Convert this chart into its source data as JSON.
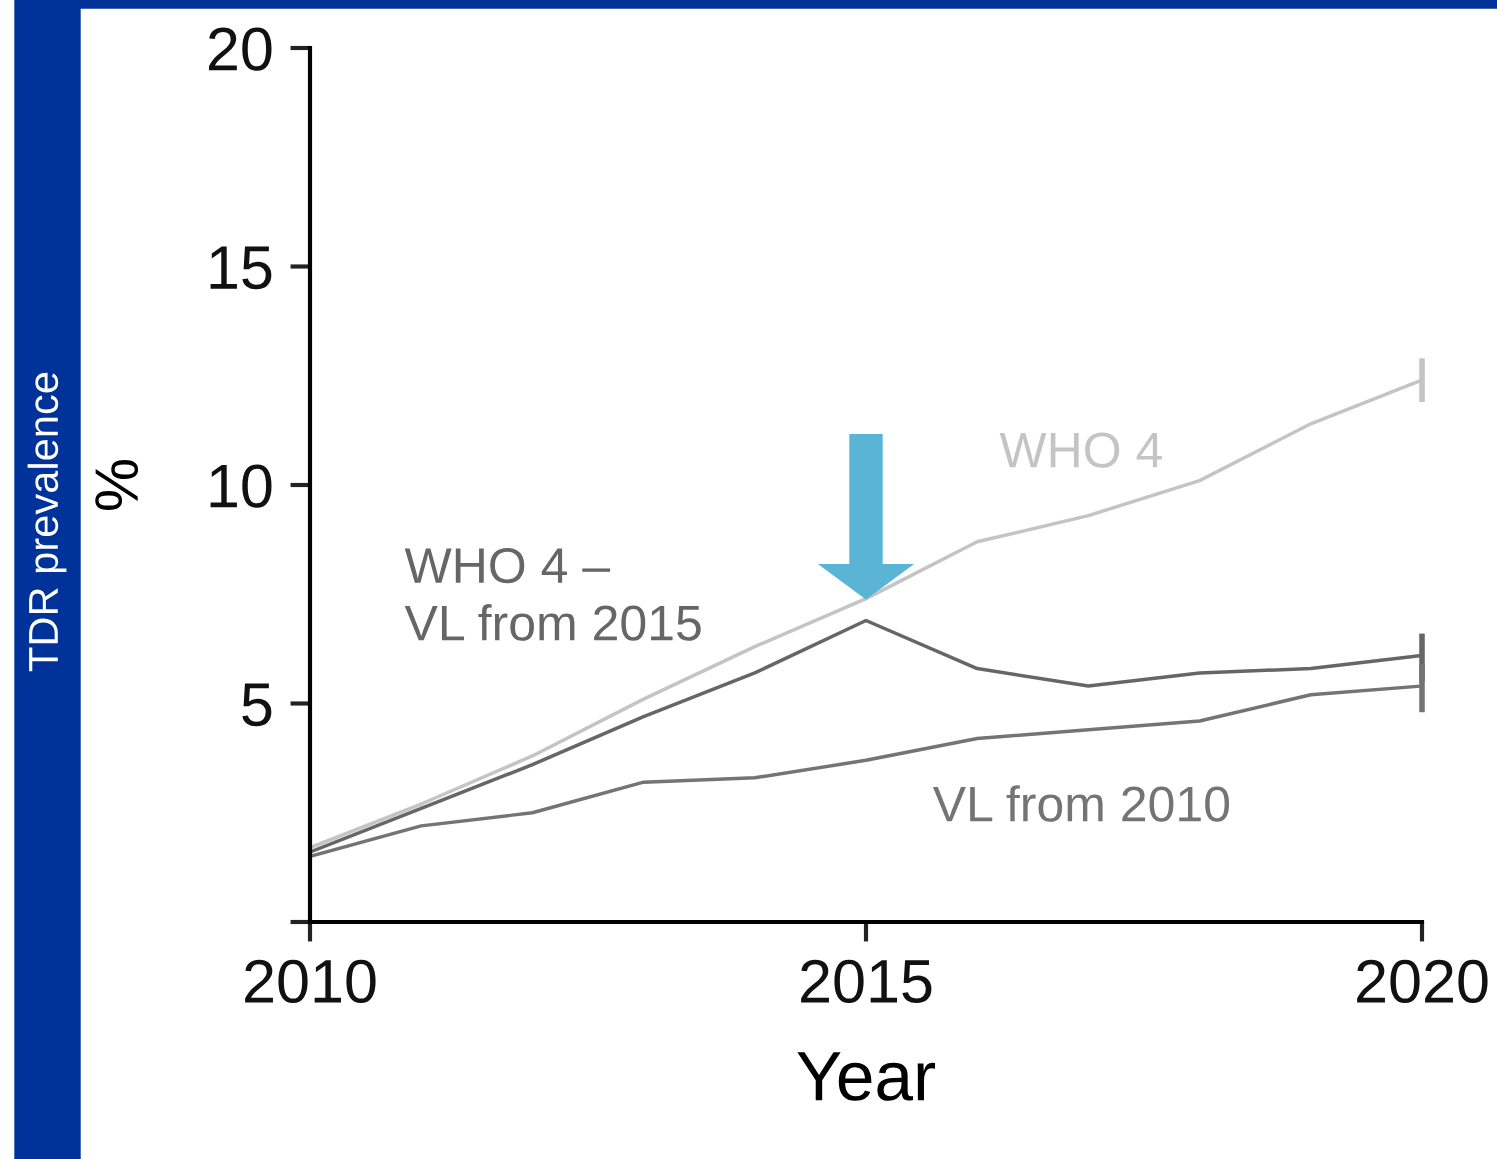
{
  "chart_data": {
    "type": "line",
    "xlabel": "Year",
    "ylabel": "%",
    "x": [
      2010,
      2011,
      2012,
      2013,
      2014,
      2015,
      2016,
      2017,
      2018,
      2019,
      2020
    ],
    "xlim": [
      2010,
      2020
    ],
    "xticks": [
      2010,
      2015,
      2020
    ],
    "ylim": [
      0,
      20
    ],
    "yticks": [
      {
        "value": 0,
        "label": null
      },
      5,
      10,
      15,
      20
    ],
    "grid": false,
    "legend": false,
    "marker": "none",
    "line_style": "solid",
    "series": [
      {
        "name": "WHO 4",
        "color": "#c4c4c4",
        "values": [
          1.7,
          2.7,
          3.8,
          5.1,
          6.3,
          7.4,
          8.7,
          9.3,
          10.1,
          11.4,
          12.4
        ],
        "errors": [
          null,
          null,
          null,
          null,
          null,
          null,
          null,
          null,
          null,
          null,
          [
            11.9,
            12.9
          ]
        ]
      },
      {
        "name": "WHO 4 –\nVL from 2015",
        "color": "#666666",
        "values": [
          1.6,
          2.6,
          3.6,
          4.7,
          5.7,
          6.9,
          5.8,
          5.4,
          5.7,
          5.8,
          6.1
        ],
        "errors": [
          null,
          null,
          null,
          null,
          null,
          null,
          null,
          null,
          null,
          null,
          [
            5.5,
            6.6
          ]
        ]
      },
      {
        "name": "VL from 2010",
        "color": "#747474",
        "values": [
          1.5,
          2.2,
          2.5,
          3.2,
          3.3,
          3.7,
          4.2,
          4.4,
          4.6,
          5.2,
          5.4
        ],
        "errors": [
          null,
          null,
          null,
          null,
          null,
          null,
          null,
          null,
          null,
          null,
          [
            4.8,
            5.9
          ]
        ]
      }
    ],
    "annotations": [
      "TDR prevalence"
    ]
  }
}
